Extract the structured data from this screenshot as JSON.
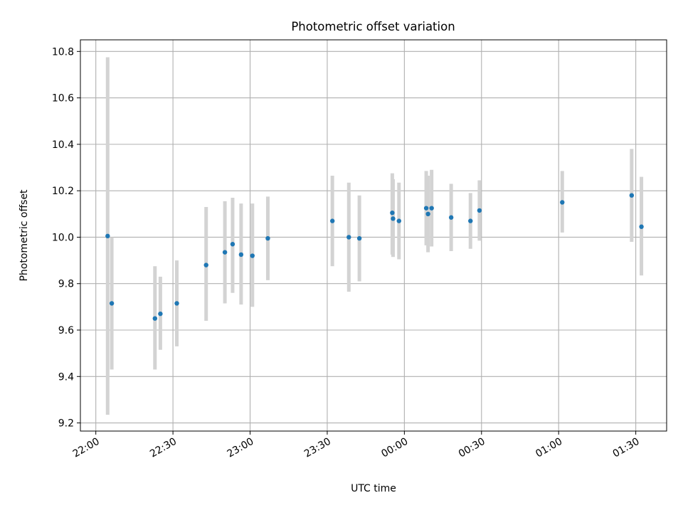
{
  "chart_data": {
    "type": "scatter",
    "title": "Photometric offset variation",
    "xlabel": "UTC time",
    "ylabel": "Photometric offset",
    "x_tick_labels": [
      "22:00",
      "22:30",
      "23:00",
      "23:30",
      "00:00",
      "00:30",
      "01:00",
      "01:30"
    ],
    "x_ticks_minutes_after_2200": [
      0,
      30,
      60,
      90,
      120,
      150,
      180,
      210
    ],
    "xlim_minutes_after_2200": [
      -6,
      222
    ],
    "y_tick_labels": [
      "9.2",
      "9.4",
      "9.6",
      "9.8",
      "10.0",
      "10.2",
      "10.4",
      "10.6",
      "10.8"
    ],
    "y_ticks": [
      9.2,
      9.4,
      9.6,
      9.8,
      10.0,
      10.2,
      10.4,
      10.6,
      10.8
    ],
    "ylim": [
      9.165,
      10.85
    ],
    "grid": true,
    "colors": {
      "point": "#1f77b4",
      "errorbar": "#d3d3d3",
      "grid": "#b0b0b0"
    },
    "series": [
      {
        "points": [
          {
            "t": "22:04.6",
            "y": 10.005,
            "yerr": [
              9.235,
              10.775
            ]
          },
          {
            "t": "22:06.2",
            "y": 9.715,
            "yerr": [
              9.43,
              10.0
            ]
          },
          {
            "t": "22:23.0",
            "y": 9.65,
            "yerr": [
              9.43,
              9.875
            ]
          },
          {
            "t": "22:25.1",
            "y": 9.67,
            "yerr": [
              9.515,
              9.83
            ]
          },
          {
            "t": "22:31.5",
            "y": 9.715,
            "yerr": [
              9.53,
              9.9
            ]
          },
          {
            "t": "22:42.9",
            "y": 9.88,
            "yerr": [
              9.64,
              10.13
            ]
          },
          {
            "t": "22:50.2",
            "y": 9.935,
            "yerr": [
              9.715,
              10.155
            ]
          },
          {
            "t": "22:53.2",
            "y": 9.97,
            "yerr": [
              9.76,
              10.17
            ]
          },
          {
            "t": "22:56.5",
            "y": 9.925,
            "yerr": [
              9.71,
              10.145
            ]
          },
          {
            "t": "23:00.9",
            "y": 9.92,
            "yerr": [
              9.7,
              10.145
            ]
          },
          {
            "t": "23:06.9",
            "y": 9.995,
            "yerr": [
              9.815,
              10.175
            ]
          },
          {
            "t": "23:32.0",
            "y": 10.07,
            "yerr": [
              9.875,
              10.265
            ]
          },
          {
            "t": "23:38.4",
            "y": 10.0,
            "yerr": [
              9.765,
              10.235
            ]
          },
          {
            "t": "23:42.5",
            "y": 9.995,
            "yerr": [
              9.81,
              10.18
            ]
          },
          {
            "t": "23:55.3",
            "y": 10.105,
            "yerr": [
              9.925,
              10.275
            ]
          },
          {
            "t": "23:55.6",
            "y": 10.08,
            "yerr": [
              9.915,
              10.25
            ]
          },
          {
            "t": "23:57.9",
            "y": 10.07,
            "yerr": [
              9.905,
              10.235
            ]
          },
          {
            "t": "00:08.5",
            "y": 10.125,
            "yerr": [
              9.965,
              10.285
            ]
          },
          {
            "t": "00:09.2",
            "y": 10.1,
            "yerr": [
              9.935,
              10.265
            ]
          },
          {
            "t": "00:10.6",
            "y": 10.125,
            "yerr": [
              9.96,
              10.29
            ]
          },
          {
            "t": "00:18.2",
            "y": 10.085,
            "yerr": [
              9.94,
              10.23
            ]
          },
          {
            "t": "00:25.7",
            "y": 10.07,
            "yerr": [
              9.95,
              10.19
            ]
          },
          {
            "t": "00:29.2",
            "y": 10.115,
            "yerr": [
              9.985,
              10.245
            ]
          },
          {
            "t": "01:01.4",
            "y": 10.15,
            "yerr": [
              10.02,
              10.285
            ]
          },
          {
            "t": "01:28.4",
            "y": 10.18,
            "yerr": [
              9.98,
              10.38
            ]
          },
          {
            "t": "01:32.2",
            "y": 10.045,
            "yerr": [
              9.835,
              10.26
            ]
          }
        ]
      }
    ]
  }
}
